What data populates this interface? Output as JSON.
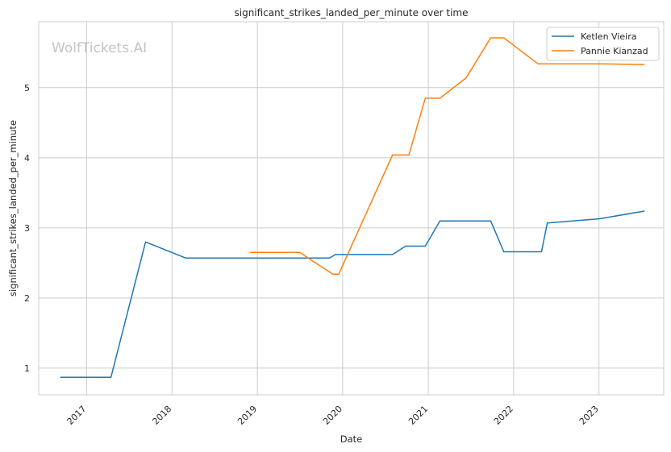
{
  "chart_data": {
    "type": "line",
    "title": "significant_strikes_landed_per_minute over time",
    "xlabel": "Date",
    "ylabel": "significant_strikes_landed_per_minute",
    "watermark": "WolfTickets.AI",
    "x_ticks": [
      "2017",
      "2018",
      "2019",
      "2020",
      "2021",
      "2022",
      "2023"
    ],
    "y_ticks": [
      1,
      2,
      3,
      4,
      5
    ],
    "xlim": [
      "2016-06-10",
      "2023-10-05"
    ],
    "ylim": [
      0.62,
      5.94
    ],
    "grid": true,
    "legend_position": "top-right",
    "series": [
      {
        "name": "Ketlen Vieira",
        "color": "#1f77b4",
        "points": [
          [
            "2016-09-10",
            0.87
          ],
          [
            "2017-04-15",
            0.87
          ],
          [
            "2017-09-10",
            2.8
          ],
          [
            "2018-03-01",
            2.57
          ],
          [
            "2019-11-05",
            2.57
          ],
          [
            "2019-12-01",
            2.62
          ],
          [
            "2020-08-01",
            2.62
          ],
          [
            "2020-09-26",
            2.74
          ],
          [
            "2020-12-19",
            2.74
          ],
          [
            "2021-02-20",
            3.1
          ],
          [
            "2021-09-25",
            3.1
          ],
          [
            "2021-11-20",
            2.66
          ],
          [
            "2022-04-30",
            2.66
          ],
          [
            "2022-05-25",
            3.07
          ],
          [
            "2023-01-01",
            3.13
          ],
          [
            "2023-07-15",
            3.24
          ]
        ]
      },
      {
        "name": "Pannie Kianzad",
        "color": "#ff7f0e",
        "points": [
          [
            "2018-11-30",
            2.65
          ],
          [
            "2019-07-01",
            2.65
          ],
          [
            "2019-11-20",
            2.34
          ],
          [
            "2019-12-15",
            2.34
          ],
          [
            "2020-08-01",
            4.04
          ],
          [
            "2020-10-10",
            4.04
          ],
          [
            "2020-12-19",
            4.85
          ],
          [
            "2021-02-20",
            4.85
          ],
          [
            "2021-06-12",
            5.14
          ],
          [
            "2021-09-25",
            5.71
          ],
          [
            "2021-11-20",
            5.71
          ],
          [
            "2022-04-15",
            5.34
          ],
          [
            "2023-01-01",
            5.34
          ],
          [
            "2023-07-15",
            5.33
          ]
        ]
      }
    ]
  }
}
